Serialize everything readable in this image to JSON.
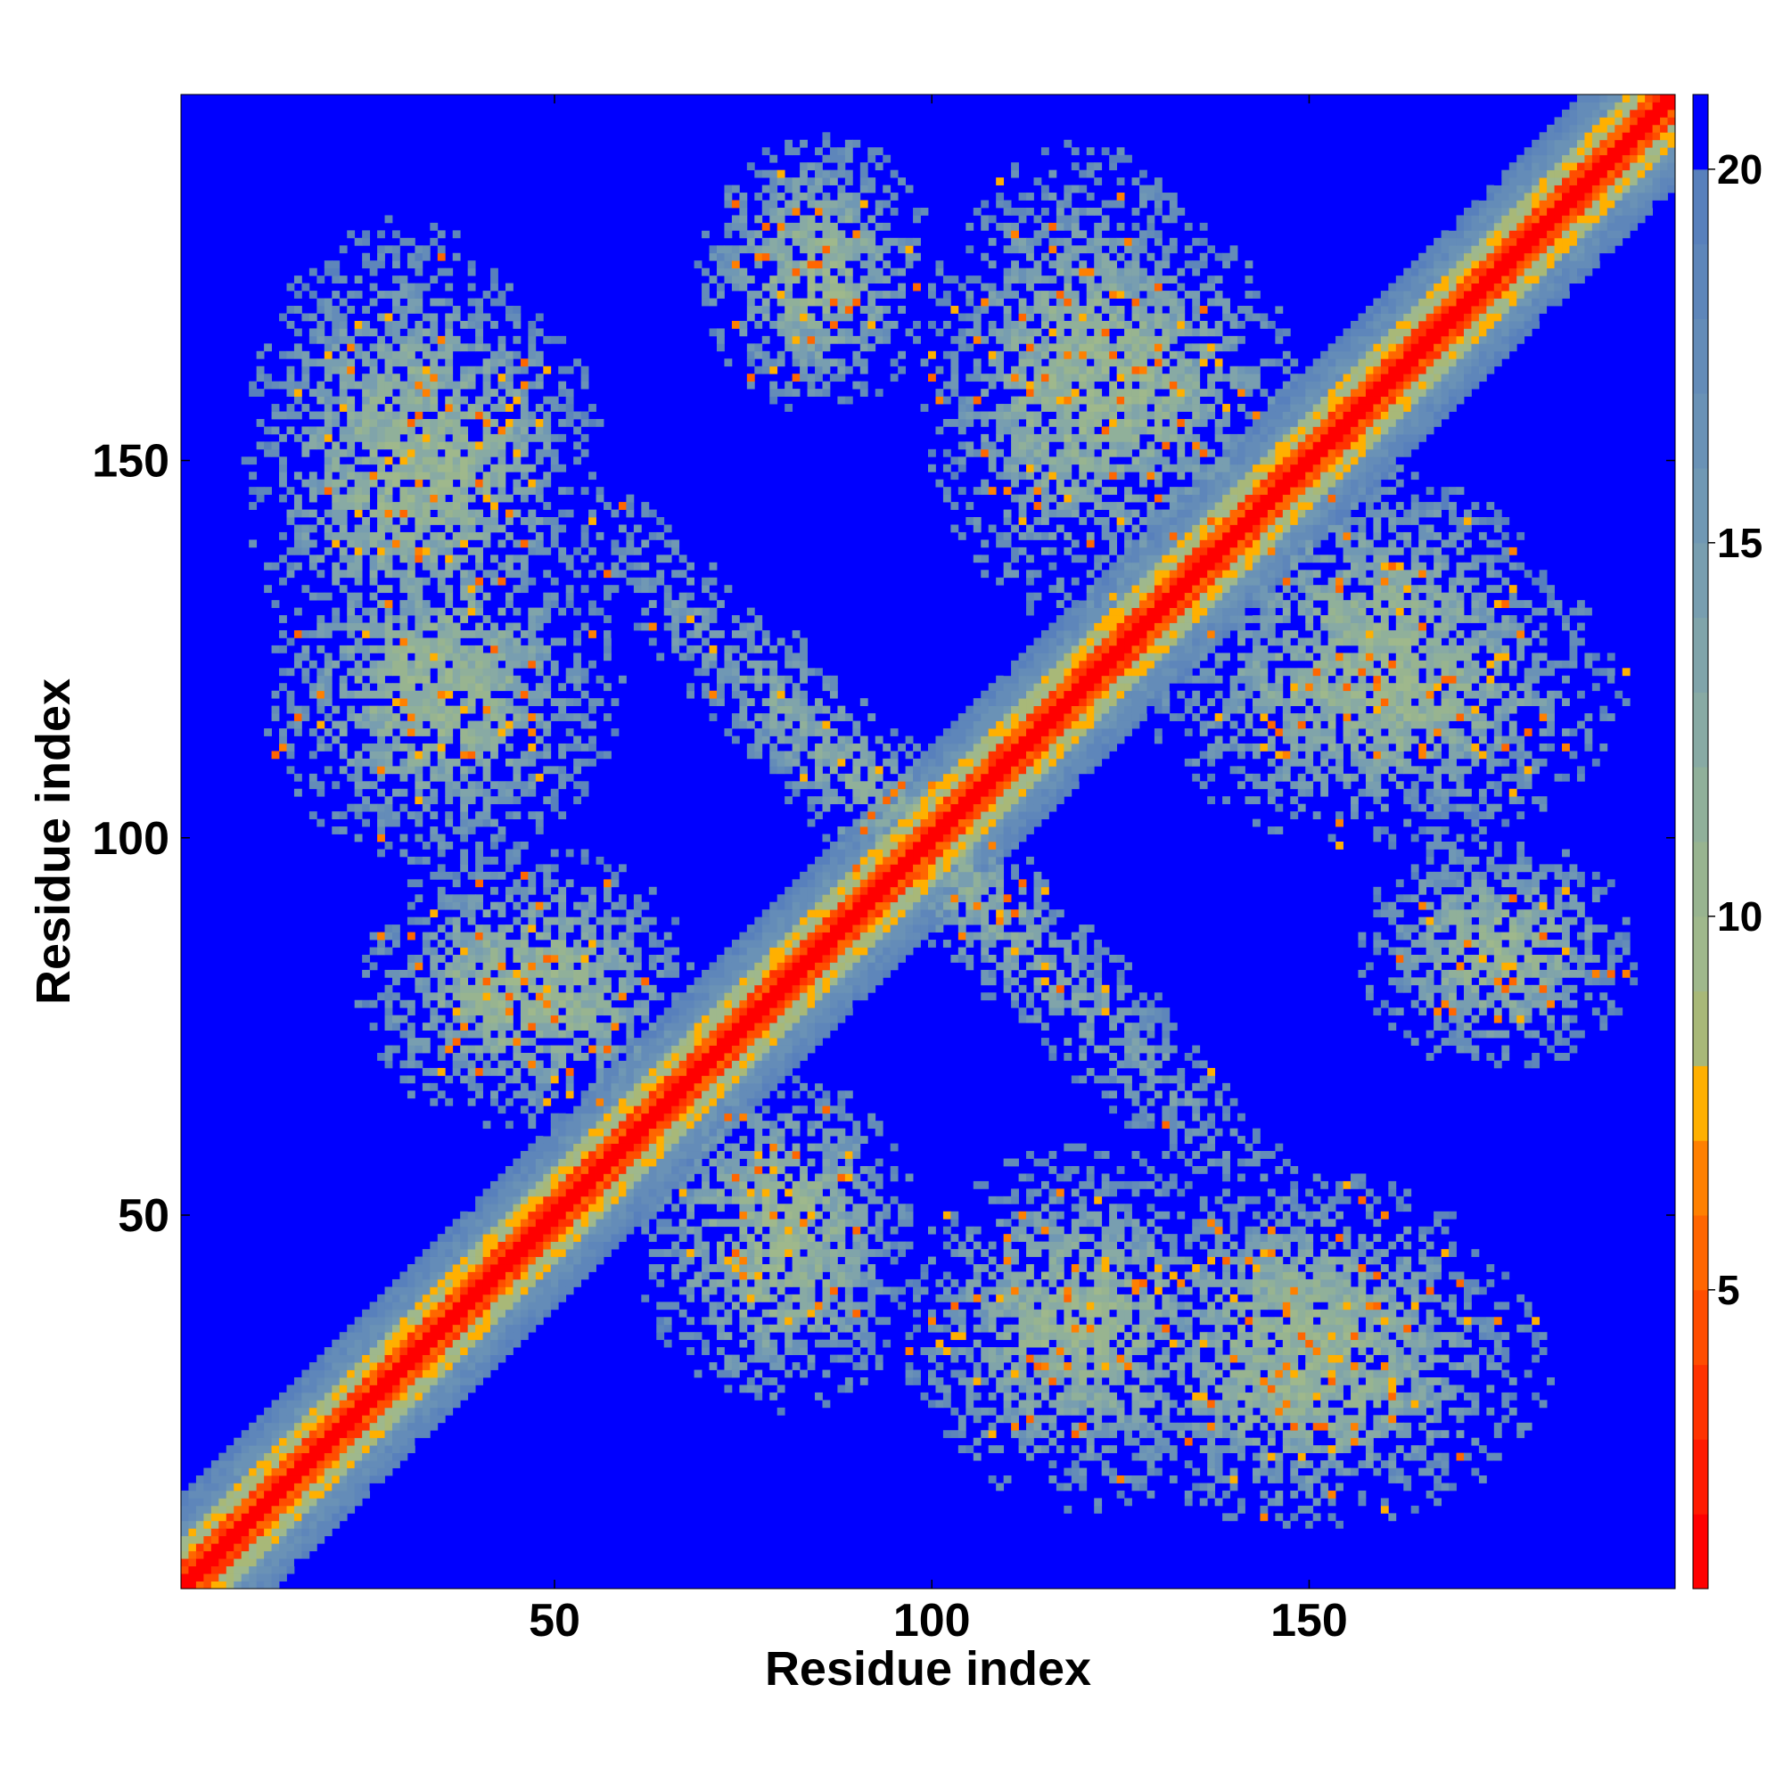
{
  "chart_data": {
    "type": "heatmap",
    "title": "",
    "xlabel": "Residue index",
    "ylabel": "Residue index",
    "xlim": [
      1,
      198
    ],
    "ylim": [
      1,
      198
    ],
    "x_ticks": [
      {
        "value": 50,
        "label": "50"
      },
      {
        "value": 100,
        "label": "100"
      },
      {
        "value": 150,
        "label": "150"
      }
    ],
    "y_ticks": [
      {
        "value": 50,
        "label": "50"
      },
      {
        "value": 100,
        "label": "100"
      },
      {
        "value": 150,
        "label": "150"
      }
    ],
    "colorbar": {
      "range": [
        1,
        21
      ],
      "ticks": [
        {
          "value": 5,
          "label": "5"
        },
        {
          "value": 10,
          "label": "10"
        },
        {
          "value": 15,
          "label": "15"
        },
        {
          "value": 20,
          "label": "20"
        }
      ],
      "levels": [
        {
          "upto": 2,
          "color": "#ff0000"
        },
        {
          "upto": 3,
          "color": "#ff1a00"
        },
        {
          "upto": 4,
          "color": "#ff3300"
        },
        {
          "upto": 5,
          "color": "#ff4d00"
        },
        {
          "upto": 6,
          "color": "#ff6600"
        },
        {
          "upto": 7,
          "color": "#ff8000"
        },
        {
          "upto": 8,
          "color": "#ffb000"
        },
        {
          "upto": 9,
          "color": "#a8b878"
        },
        {
          "upto": 10,
          "color": "#9fb88c"
        },
        {
          "upto": 11,
          "color": "#98b490"
        },
        {
          "upto": 12,
          "color": "#90b09a"
        },
        {
          "upto": 13,
          "color": "#88aaa4"
        },
        {
          "upto": 14,
          "color": "#80a4aa"
        },
        {
          "upto": 15,
          "color": "#789eb0"
        },
        {
          "upto": 16,
          "color": "#7098b4"
        },
        {
          "upto": 17,
          "color": "#6a92b6"
        },
        {
          "upto": 18,
          "color": "#648cb8"
        },
        {
          "upto": 19,
          "color": "#5e86ba"
        },
        {
          "upto": 20,
          "color": "#5880bc"
        },
        {
          "upto": 21,
          "color": "#0000ff"
        }
      ]
    },
    "background_color": "#0000ff",
    "contact_features": [
      {
        "kind": "diagonal_band",
        "x_range": [
          1,
          198
        ],
        "description_value": "distance < 8 along |i-j| < 4"
      },
      {
        "kind": "antidiagonal_cluster",
        "center": [
          98,
          100
        ],
        "length": 190,
        "width": 22
      },
      {
        "kind": "cluster",
        "center": [
          35,
          150
        ],
        "size": [
          40,
          50
        ]
      },
      {
        "kind": "cluster",
        "center": [
          125,
          160
        ],
        "size": [
          45,
          45
        ]
      },
      {
        "kind": "cluster",
        "center": [
          160,
          120
        ],
        "size": [
          60,
          40
        ]
      },
      {
        "kind": "cluster",
        "center": [
          45,
          80
        ],
        "size": [
          40,
          35
        ]
      },
      {
        "kind": "cluster",
        "center": [
          80,
          50
        ],
        "size": [
          35,
          35
        ]
      },
      {
        "kind": "cluster",
        "center": [
          150,
          30
        ],
        "size": [
          60,
          40
        ]
      },
      {
        "kind": "cluster",
        "center": [
          120,
          35
        ],
        "size": [
          45,
          45
        ]
      },
      {
        "kind": "cluster",
        "center": [
          175,
          85
        ],
        "size": [
          35,
          30
        ]
      }
    ]
  }
}
